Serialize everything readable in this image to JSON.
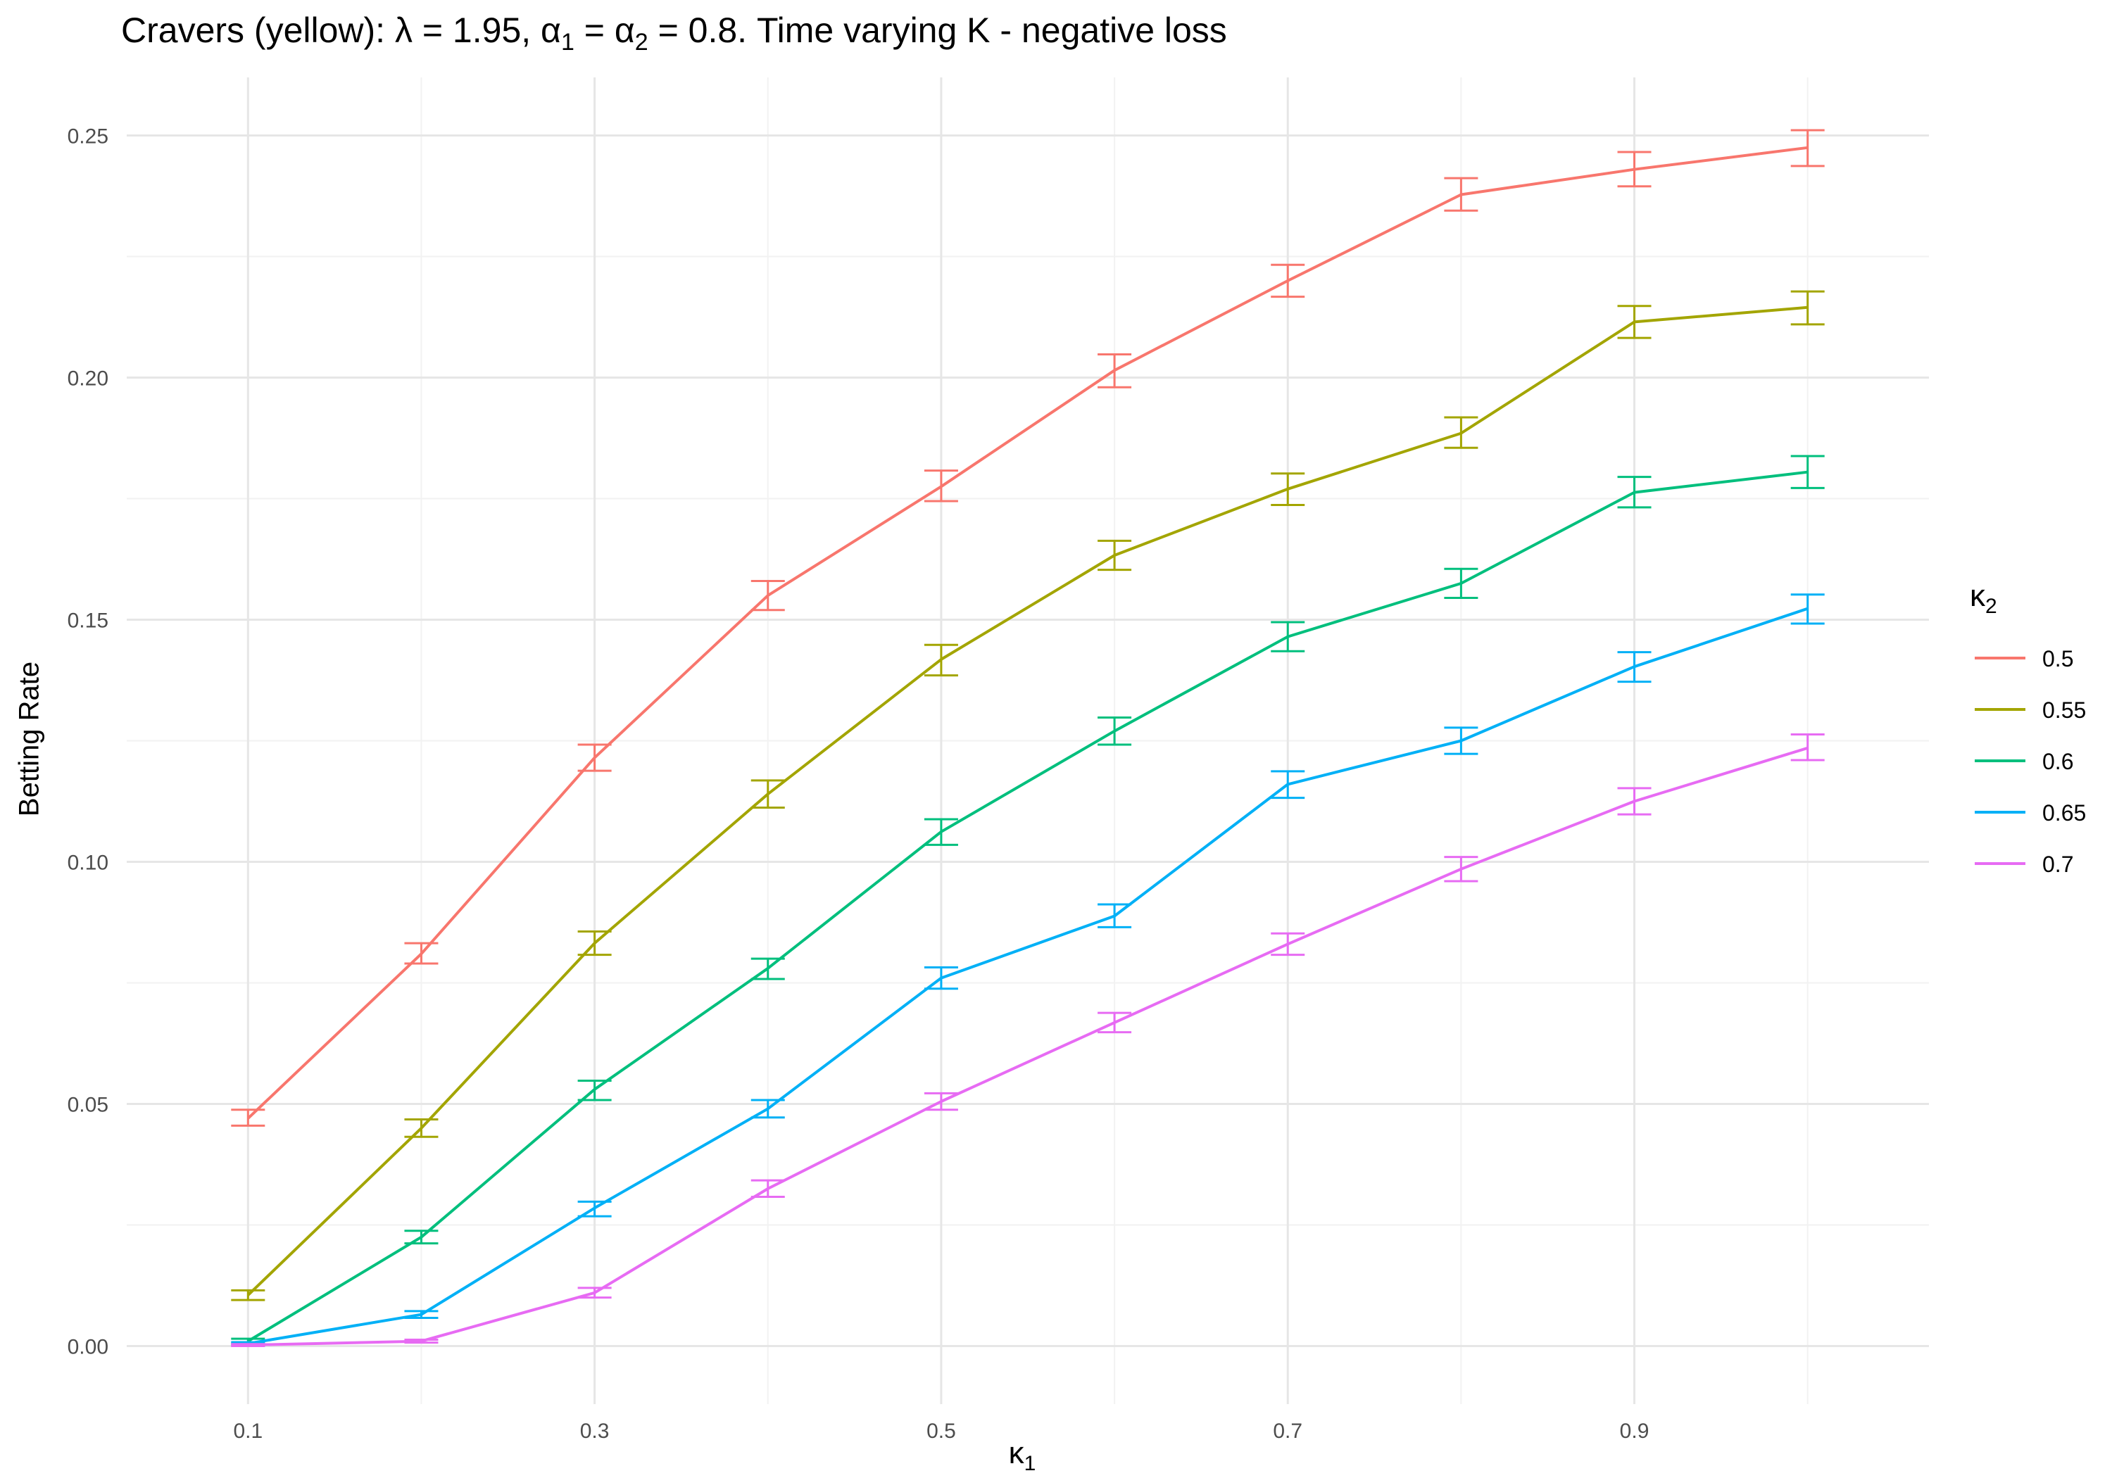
{
  "title": {
    "prefix": "Cravers (yellow): ",
    "lambda_sym": "λ",
    "lambda_eq": " = 1.95, ",
    "alpha_sym": "α",
    "alpha1_sub": "1",
    "eq1": " = ",
    "alpha2_sub": "2",
    "eq2": " = 0.8. Time varying K - negative loss"
  },
  "axes": {
    "ylabel": "Betting Rate",
    "xlabel_sym": "κ",
    "xlabel_sub": "1"
  },
  "legend": {
    "title_sym": "κ",
    "title_sub": "2"
  },
  "chart_data": {
    "type": "line",
    "title": "Cravers (yellow): λ = 1.95, α1 = α2 = 0.8. Time varying K - negative loss",
    "xlabel": "κ1",
    "ylabel": "Betting Rate",
    "legend_title": "κ2",
    "legend_position": "right",
    "grid": true,
    "error_bars": true,
    "x": [
      0.1,
      0.2,
      0.3,
      0.4,
      0.5,
      0.6,
      0.7,
      0.8,
      0.9,
      1.0
    ],
    "xlim": [
      0.03,
      1.07
    ],
    "ylim": [
      -0.012,
      0.262
    ],
    "x_ticks": [
      0.1,
      0.3,
      0.5,
      0.7,
      0.9
    ],
    "x_tick_labels": [
      "0.1",
      "0.3",
      "0.5",
      "0.7",
      "0.9"
    ],
    "y_ticks": [
      0.0,
      0.05,
      0.1,
      0.15,
      0.2,
      0.25
    ],
    "y_tick_labels": [
      "0.00",
      "0.05",
      "0.10",
      "0.15",
      "0.20",
      "0.25"
    ],
    "series": [
      {
        "name": "0.5",
        "color": "#F8766D",
        "values": [
          0.047,
          0.081,
          0.1215,
          0.155,
          0.1775,
          0.2015,
          0.22,
          0.2378,
          0.243,
          0.2475
        ],
        "err_low": [
          0.0455,
          0.079,
          0.1188,
          0.152,
          0.1745,
          0.198,
          0.2167,
          0.2345,
          0.2395,
          0.2437
        ],
        "err_high": [
          0.0488,
          0.0832,
          0.1242,
          0.158,
          0.1808,
          0.2048,
          0.2233,
          0.2412,
          0.2466,
          0.2511
        ]
      },
      {
        "name": "0.55",
        "color": "#A3A500",
        "values": [
          0.0105,
          0.045,
          0.0832,
          0.114,
          0.1418,
          0.1633,
          0.177,
          0.1885,
          0.2115,
          0.2145
        ],
        "err_low": [
          0.0095,
          0.0432,
          0.0808,
          0.1112,
          0.1385,
          0.1603,
          0.1737,
          0.1855,
          0.2082,
          0.211
        ],
        "err_high": [
          0.0115,
          0.0468,
          0.0856,
          0.1168,
          0.1448,
          0.1663,
          0.1802,
          0.1918,
          0.2148,
          0.2178
        ]
      },
      {
        "name": "0.6",
        "color": "#00BF7D",
        "values": [
          0.001,
          0.0225,
          0.053,
          0.078,
          0.1062,
          0.127,
          0.1465,
          0.1575,
          0.1763,
          0.1805
        ],
        "err_low": [
          0.0005,
          0.0212,
          0.0508,
          0.0758,
          0.1035,
          0.1242,
          0.1435,
          0.1545,
          0.1732,
          0.1772
        ],
        "err_high": [
          0.0015,
          0.0238,
          0.0548,
          0.08,
          0.1088,
          0.1298,
          0.1495,
          0.1605,
          0.1795,
          0.1838
        ]
      },
      {
        "name": "0.65",
        "color": "#00B0F6",
        "values": [
          0.0005,
          0.0065,
          0.0285,
          0.049,
          0.076,
          0.0888,
          0.116,
          0.125,
          0.1403,
          0.1523
        ],
        "err_low": [
          0.0001,
          0.0058,
          0.0268,
          0.0472,
          0.0738,
          0.0865,
          0.1132,
          0.1223,
          0.1372,
          0.1492
        ],
        "err_high": [
          0.0008,
          0.0072,
          0.0298,
          0.0508,
          0.0782,
          0.0912,
          0.1187,
          0.1277,
          0.1433,
          0.1552
        ]
      },
      {
        "name": "0.7",
        "color": "#E76BF3",
        "values": [
          0.0002,
          0.001,
          0.011,
          0.0325,
          0.0505,
          0.0668,
          0.083,
          0.0985,
          0.1125,
          0.1235
        ],
        "err_low": [
          0.0,
          0.0007,
          0.01,
          0.0308,
          0.0488,
          0.0648,
          0.0808,
          0.096,
          0.1098,
          0.121
        ],
        "err_high": [
          0.0004,
          0.0013,
          0.012,
          0.0342,
          0.0522,
          0.0688,
          0.0852,
          0.101,
          0.1152,
          0.1263
        ]
      }
    ]
  }
}
